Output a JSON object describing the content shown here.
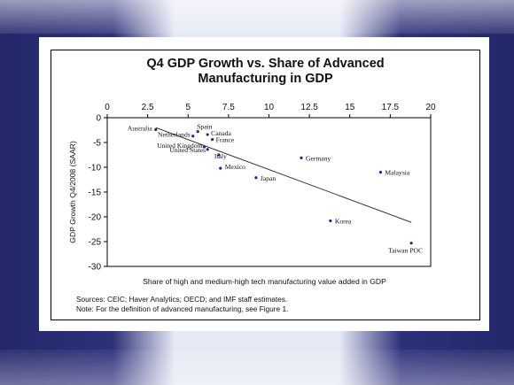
{
  "chart_data": {
    "type": "scatter",
    "title_line1": "Q4 GDP Growth vs. Share of Advanced",
    "title_line2": "Manufacturing in GDP",
    "xlabel": "Share of high and medium-high tech manufacturing value added in GDP",
    "ylabel": "GDP Growth Q4/2008 (SAAR)",
    "xlim": [
      0,
      20
    ],
    "ylim": [
      -30,
      0
    ],
    "x_ticks": [
      "0",
      "2.5",
      "5",
      "7.5",
      "10",
      "12.5",
      "15",
      "17.5",
      "20"
    ],
    "y_ticks": [
      "0",
      "-5",
      "-10",
      "-15",
      "-20",
      "-25",
      "-30"
    ],
    "x_axis_position": "top",
    "points": [
      {
        "label": "Australia",
        "x": 3.0,
        "y": -2.4
      },
      {
        "label": "Spain",
        "x": 5.6,
        "y": -2.8
      },
      {
        "label": "Netherlands",
        "x": 5.3,
        "y": -3.7
      },
      {
        "label": "Canada",
        "x": 6.2,
        "y": -3.4
      },
      {
        "label": "France",
        "x": 6.5,
        "y": -4.4
      },
      {
        "label": "United Kingdom",
        "x": 6.0,
        "y": -5.9
      },
      {
        "label": "United States",
        "x": 6.2,
        "y": -6.4
      },
      {
        "label": "Italy",
        "x": 6.9,
        "y": -7.5
      },
      {
        "label": "Mexico",
        "x": 7.0,
        "y": -10.2
      },
      {
        "label": "Japan",
        "x": 9.2,
        "y": -12.1
      },
      {
        "label": "Germany",
        "x": 12.0,
        "y": -8.1
      },
      {
        "label": "Malaysia",
        "x": 16.9,
        "y": -11.0
      },
      {
        "label": "Korea",
        "x": 13.8,
        "y": -20.8
      },
      {
        "label": "Taiwan POC",
        "x": 18.8,
        "y": -25.3
      }
    ],
    "trendline": {
      "x": [
        3.0,
        18.8
      ],
      "y": [
        -2.0,
        -21.1
      ]
    },
    "grid": false
  },
  "notes": {
    "sources": "Sources: CEIC; Haver Analytics; OECD; and IMF staff estimates.",
    "note": "Note: For the definition of advanced manufacturing, see Figure 1."
  }
}
